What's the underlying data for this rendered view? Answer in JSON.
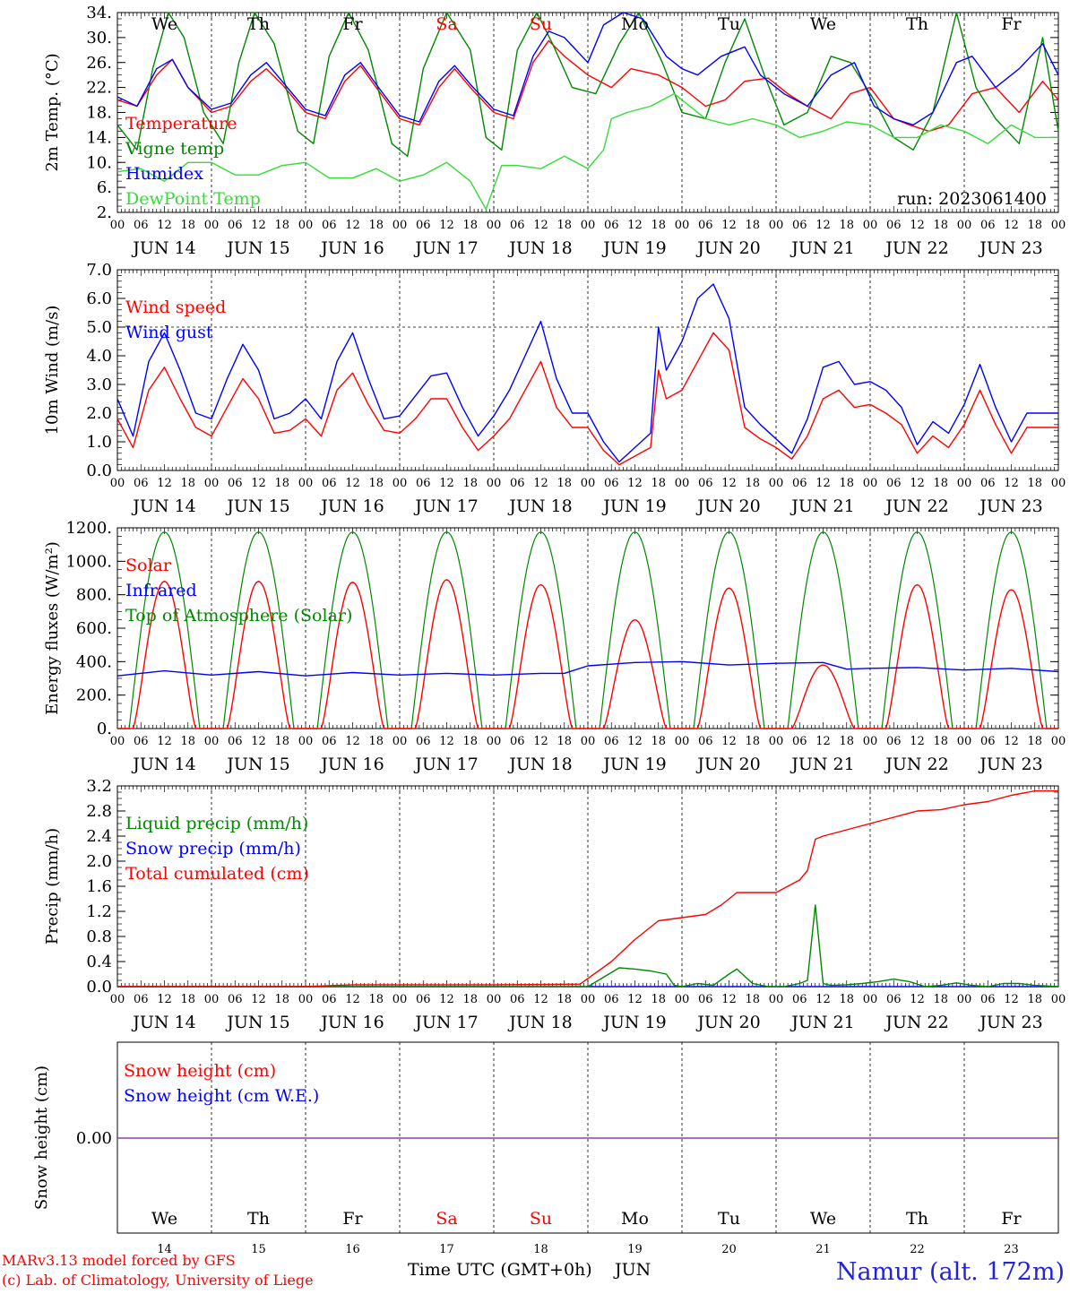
{
  "chart_data": [
    {
      "type": "line",
      "ylabel": "2m Temp. (°C)",
      "ylim": [
        2,
        34
      ],
      "yticks": [
        "34.",
        "30.",
        "26.",
        "22.",
        "18.",
        "14.",
        "10.",
        "6.",
        "2."
      ],
      "ytick_values": [
        34,
        30,
        26,
        22,
        18,
        14,
        10,
        6,
        2
      ],
      "day_labels": [
        "We",
        "Th",
        "Fr",
        "Sa",
        "Su",
        "Mo",
        "Tu",
        "We",
        "Th",
        "Fr"
      ],
      "weekend_label_color": "#ff0000",
      "run_label": "run: 2023061400",
      "x_hour_range": [
        0,
        240
      ],
      "series": [
        {
          "name": "Temperature",
          "color": "#ff0000",
          "x": [
            0,
            5,
            10,
            14,
            18,
            24,
            29,
            34,
            38,
            42,
            48,
            53,
            58,
            62,
            66,
            72,
            77,
            82,
            86,
            90,
            96,
            101,
            106,
            110,
            114,
            120,
            126,
            131,
            138,
            144,
            150,
            155,
            160,
            166,
            171,
            176,
            182,
            187,
            192,
            198,
            202,
            207,
            212,
            218,
            224,
            230,
            236,
            240
          ],
          "values": [
            20,
            19,
            24,
            26.5,
            22,
            18,
            19,
            23,
            25,
            22.5,
            18,
            17,
            23,
            25.5,
            22,
            17,
            16,
            22,
            25,
            22,
            18,
            17,
            26,
            29.5,
            27,
            24,
            22,
            25,
            24,
            22,
            19,
            20,
            23,
            23.5,
            21,
            19,
            17,
            21,
            22,
            17,
            16,
            15,
            16,
            21,
            22,
            18,
            23,
            20
          ]
        },
        {
          "name": "Vigne temp",
          "color": "#008800",
          "x": [
            0,
            5,
            9,
            13,
            17,
            22,
            27,
            31,
            35,
            40,
            46,
            50,
            54,
            59,
            64,
            70,
            74,
            78,
            84,
            90,
            94,
            98,
            102,
            107,
            111,
            116,
            122,
            128,
            133,
            139,
            144,
            150,
            155,
            160,
            165,
            170,
            176,
            182,
            187,
            193,
            198,
            203,
            208,
            214,
            219,
            224,
            230,
            236,
            240
          ],
          "values": [
            16,
            12,
            25,
            34,
            30,
            18,
            13,
            26,
            34,
            29,
            15,
            13,
            27,
            34,
            28,
            13,
            11,
            25,
            34,
            28,
            14,
            12,
            28,
            34,
            29,
            22,
            21,
            29,
            34,
            26,
            18,
            17,
            26,
            33,
            24,
            16,
            18,
            27,
            26,
            20,
            14,
            12,
            18,
            34,
            22,
            17,
            13,
            30,
            15
          ]
        },
        {
          "name": "Humidex",
          "color": "#0000ff",
          "x": [
            0,
            5,
            10,
            14,
            18,
            24,
            29,
            34,
            38,
            42,
            48,
            53,
            58,
            62,
            66,
            72,
            77,
            82,
            86,
            90,
            96,
            101,
            106,
            110,
            114,
            120,
            124,
            129,
            134,
            140,
            144,
            148,
            154,
            160,
            164,
            170,
            176,
            182,
            188,
            193,
            198,
            203,
            208,
            214,
            218,
            224,
            230,
            236,
            240
          ],
          "values": [
            20.5,
            19,
            25,
            26.5,
            22,
            18.5,
            19.5,
            24,
            26,
            23,
            18.5,
            17.5,
            24,
            26,
            22.5,
            17.5,
            16.5,
            23,
            25.5,
            22.5,
            18.5,
            17.5,
            27,
            31,
            30,
            26,
            32,
            34,
            33,
            27,
            25,
            24,
            27,
            28.5,
            24,
            21,
            19,
            24,
            26,
            19,
            17,
            16,
            18,
            26,
            27,
            22,
            25,
            29,
            24
          ]
        },
        {
          "name": "DewPoint Temp",
          "color": "#33dd33",
          "x": [
            0,
            6,
            12,
            18,
            24,
            30,
            36,
            42,
            48,
            54,
            60,
            66,
            72,
            78,
            84,
            90,
            94,
            98,
            102,
            108,
            114,
            120,
            124,
            126,
            130,
            136,
            142,
            146,
            150,
            156,
            162,
            168,
            174,
            180,
            186,
            192,
            198,
            204,
            210,
            216,
            222,
            228,
            234,
            240
          ],
          "values": [
            8.5,
            9,
            7,
            10,
            10,
            8,
            8,
            9.5,
            10,
            7.5,
            7.5,
            9,
            7,
            8,
            10,
            7,
            2.5,
            9.5,
            9.5,
            9,
            11,
            9,
            12,
            17,
            18,
            19,
            21,
            19,
            17,
            16,
            17,
            16,
            14,
            15,
            16.5,
            16,
            14,
            14,
            16,
            15,
            13,
            16,
            14,
            14
          ]
        }
      ]
    },
    {
      "type": "line",
      "ylabel": "10m Wind (m/s)",
      "ylim": [
        0,
        7
      ],
      "yticks": [
        "7.0",
        "6.0",
        "5.0",
        "4.0",
        "3.0",
        "2.0",
        "1.0",
        "0.0"
      ],
      "ytick_values": [
        7,
        6,
        5,
        4,
        3,
        2,
        1,
        0
      ],
      "reference_line": 5,
      "x_hour_range": [
        0,
        240
      ],
      "series": [
        {
          "name": "Wind speed",
          "color": "#ff0000",
          "x": [
            0,
            4,
            8,
            12,
            16,
            20,
            24,
            28,
            32,
            36,
            40,
            44,
            48,
            52,
            56,
            60,
            64,
            68,
            72,
            76,
            80,
            84,
            88,
            92,
            96,
            100,
            104,
            108,
            112,
            116,
            120,
            124,
            128,
            132,
            136,
            138,
            140,
            144,
            148,
            152,
            156,
            160,
            164,
            168,
            172,
            176,
            180,
            184,
            188,
            192,
            196,
            200,
            204,
            208,
            212,
            216,
            220,
            224,
            228,
            232,
            236,
            240
          ],
          "values": [
            1.8,
            0.8,
            2.8,
            3.6,
            2.5,
            1.5,
            1.2,
            2.2,
            3.2,
            2.5,
            1.3,
            1.4,
            1.8,
            1.2,
            2.8,
            3.4,
            2.3,
            1.4,
            1.3,
            1.8,
            2.5,
            2.5,
            1.5,
            0.7,
            1.2,
            1.8,
            2.8,
            3.8,
            2.2,
            1.5,
            1.5,
            0.7,
            0.2,
            0.5,
            0.8,
            3.5,
            2.5,
            2.8,
            3.8,
            4.8,
            4.2,
            1.5,
            1.1,
            0.8,
            0.4,
            1.2,
            2.5,
            2.8,
            2.2,
            2.3,
            2.0,
            1.6,
            0.6,
            1.2,
            0.8,
            1.6,
            2.8,
            1.6,
            0.6,
            1.5,
            1.5,
            1.5
          ]
        },
        {
          "name": "Wind gust",
          "color": "#0000ff",
          "x": [
            0,
            4,
            8,
            12,
            16,
            20,
            24,
            28,
            32,
            36,
            40,
            44,
            48,
            52,
            56,
            60,
            64,
            68,
            72,
            76,
            80,
            84,
            88,
            92,
            96,
            100,
            104,
            108,
            112,
            116,
            120,
            124,
            128,
            132,
            136,
            138,
            140,
            144,
            148,
            152,
            156,
            160,
            164,
            168,
            172,
            176,
            180,
            184,
            188,
            192,
            196,
            200,
            204,
            208,
            212,
            216,
            220,
            224,
            228,
            232,
            236,
            240
          ],
          "values": [
            2.5,
            1.2,
            3.8,
            4.8,
            3.5,
            2.0,
            1.8,
            3.2,
            4.4,
            3.5,
            1.8,
            2.0,
            2.5,
            1.8,
            3.8,
            4.8,
            3.2,
            1.8,
            1.9,
            2.6,
            3.3,
            3.4,
            2.2,
            1.2,
            1.9,
            2.8,
            4.0,
            5.2,
            3.2,
            2.0,
            2.0,
            1.0,
            0.3,
            0.8,
            1.3,
            5.0,
            3.5,
            4.5,
            6.0,
            6.5,
            5.3,
            2.2,
            1.6,
            1.1,
            0.6,
            1.8,
            3.6,
            3.8,
            3.0,
            3.1,
            2.8,
            2.2,
            0.9,
            1.7,
            1.3,
            2.3,
            3.7,
            2.2,
            1.0,
            2.0,
            2.0,
            2.0
          ]
        }
      ]
    },
    {
      "type": "line",
      "ylabel": "Energy fluxes (W/m²)",
      "ylim": [
        0,
        1200
      ],
      "yticks": [
        "1200.",
        "1000.",
        "800.",
        "600.",
        "400.",
        "200.",
        "0."
      ],
      "ytick_values": [
        1200,
        1000,
        800,
        600,
        400,
        200,
        0
      ],
      "x_hour_range": [
        0,
        240
      ],
      "series": [
        {
          "name": "Solar",
          "color": "#ff0000",
          "daily_peaks": [
            880,
            880,
            875,
            890,
            860,
            650,
            840,
            380,
            860,
            830
          ],
          "daylight_hours": [
            4,
            20
          ]
        },
        {
          "name": "Infrared",
          "color": "#0000ff",
          "x": [
            0,
            12,
            24,
            36,
            48,
            60,
            72,
            84,
            96,
            108,
            114,
            120,
            132,
            144,
            156,
            168,
            180,
            186,
            192,
            204,
            216,
            228,
            240
          ],
          "values": [
            315,
            345,
            320,
            340,
            315,
            335,
            320,
            330,
            320,
            330,
            330,
            375,
            395,
            400,
            380,
            390,
            395,
            355,
            360,
            365,
            350,
            360,
            340
          ]
        },
        {
          "name": "Top of Atmosphere (Solar)",
          "color": "#008800",
          "daily_peak": 1175,
          "daylight_hours": [
            3,
            21
          ]
        }
      ]
    },
    {
      "type": "line",
      "ylabel": "Precip (mm/h)",
      "ylim": [
        0,
        3.2
      ],
      "yticks": [
        "3.2",
        "2.8",
        "2.4",
        "2.0",
        "1.6",
        "1.2",
        "0.8",
        "0.4",
        "0.0"
      ],
      "ytick_values": [
        3.2,
        2.8,
        2.4,
        2.0,
        1.6,
        1.2,
        0.8,
        0.4,
        0.0
      ],
      "x_hour_range": [
        0,
        240
      ],
      "series": [
        {
          "name": "Liquid precip (mm/h)",
          "color": "#008800",
          "x": [
            0,
            120,
            124,
            128,
            132,
            136,
            140,
            142,
            144,
            148,
            152,
            156,
            158,
            162,
            166,
            170,
            174,
            176,
            178,
            180,
            182,
            186,
            190,
            194,
            198,
            202,
            206,
            210,
            214,
            218,
            222,
            226,
            230,
            234,
            240
          ],
          "values": [
            0,
            0,
            0.15,
            0.3,
            0.28,
            0.25,
            0.2,
            0.02,
            0,
            0.05,
            0.02,
            0.2,
            0.28,
            0.05,
            0,
            0,
            0.05,
            0.1,
            1.3,
            0.05,
            0.02,
            0.03,
            0.05,
            0.08,
            0.12,
            0.08,
            0,
            0.02,
            0.06,
            0.02,
            0,
            0.05,
            0.05,
            0.02,
            0
          ]
        },
        {
          "name": "Snow precip (mm/h)",
          "color": "#0000ff",
          "x": [
            0,
            240
          ],
          "values": [
            0,
            0
          ]
        },
        {
          "name": "Total cumulated (cm)",
          "color": "#ff0000",
          "x": [
            0,
            48,
            60,
            72,
            96,
            118,
            126,
            132,
            138,
            144,
            150,
            154,
            158,
            162,
            168,
            174,
            176,
            178,
            180,
            186,
            192,
            198,
            204,
            210,
            216,
            222,
            228,
            234,
            240
          ],
          "values": [
            0,
            0,
            0.03,
            0.03,
            0.03,
            0.04,
            0.4,
            0.75,
            1.05,
            1.1,
            1.15,
            1.3,
            1.5,
            1.5,
            1.5,
            1.7,
            1.85,
            2.35,
            2.4,
            2.5,
            2.6,
            2.7,
            2.8,
            2.82,
            2.9,
            2.95,
            3.05,
            3.12,
            3.12
          ]
        }
      ]
    },
    {
      "type": "line",
      "ylabel": "Snow height (cm)",
      "yticks": [
        "0.00"
      ],
      "ytick_values": [
        0
      ],
      "day_labels": [
        "We",
        "Th",
        "Fr",
        "Sa",
        "Su",
        "Mo",
        "Tu",
        "We",
        "Th",
        "Fr"
      ],
      "day_numbers": [
        "14",
        "15",
        "16",
        "17",
        "18",
        "19",
        "20",
        "21",
        "22",
        "23"
      ],
      "weekend_label_color": "#ff0000",
      "x_hour_range": [
        0,
        240
      ],
      "series": [
        {
          "name": "Snow height (cm)",
          "color": "#ff0000",
          "x": [
            0,
            240
          ],
          "values": [
            0,
            0
          ]
        },
        {
          "name": "Snow height (cm W.E.)",
          "color": "#0000ff",
          "x": [
            0,
            240
          ],
          "values": [
            0,
            0
          ]
        }
      ]
    }
  ],
  "axis": {
    "hour_labels": [
      "00",
      "06",
      "12",
      "18"
    ],
    "end_label": "00",
    "dates": [
      "JUN 14",
      "JUN 15",
      "JUN 16",
      "JUN 17",
      "JUN 18",
      "JUN 19",
      "JUN 20",
      "JUN 21",
      "JUN 22",
      "JUN 23"
    ]
  },
  "footer": {
    "model_line": "MARv3.13 model forced by GFS",
    "credit_line": "(c) Lab. of Climatology, University of Liege",
    "xlabel": "Time UTC (GMT+0h)",
    "month": "JUN",
    "location": "Namur (alt. 172m)"
  },
  "colors": {
    "red": "#ff0000",
    "green": "#008800",
    "blue": "#0000ff",
    "lightgreen": "#33dd33",
    "location": "#2222dd",
    "snow_line": "#8844aa"
  }
}
